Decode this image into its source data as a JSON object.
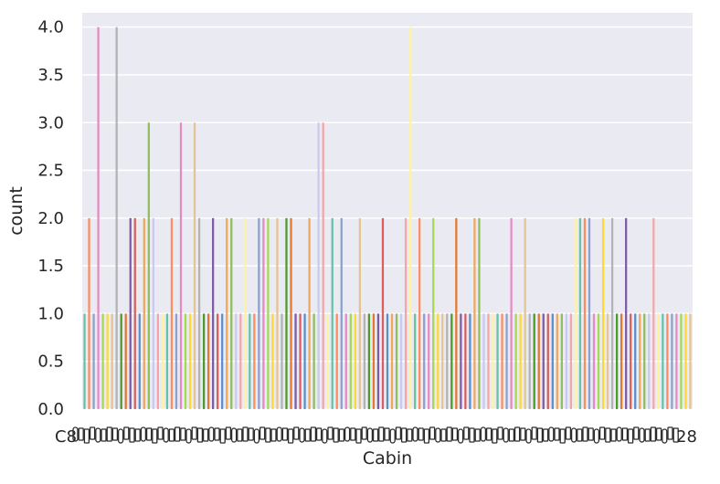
{
  "chart_data": {
    "type": "bar",
    "title": "",
    "xlabel": "Cabin",
    "ylabel": "count",
    "ylim": [
      0,
      4.15
    ],
    "yticks": [
      "0.0",
      "0.5",
      "1.0",
      "1.5",
      "2.0",
      "2.5",
      "3.0",
      "3.5",
      "4.0"
    ],
    "grid": true,
    "background": "#eaeaf2",
    "palette": [
      "#66c2a5",
      "#fc8d62",
      "#8da0cb",
      "#e78ac3",
      "#a6d854",
      "#ffd92f",
      "#e5c494",
      "#b3b3b3",
      "#4c9a2a",
      "#e6772e",
      "#7d5ba6",
      "#d95f5f",
      "#5b8fc9",
      "#f2a65a",
      "#8fbf5a",
      "#c9c9f2",
      "#f4a6a6",
      "#fff3a0"
    ],
    "first_category_label": "C8",
    "last_category_label": "28",
    "values": [
      1,
      2,
      1,
      4,
      1,
      1,
      1,
      4,
      1,
      1,
      2,
      2,
      1,
      2,
      3,
      2,
      1,
      1,
      1,
      2,
      1,
      3,
      1,
      1,
      3,
      2,
      1,
      1,
      2,
      1,
      1,
      2,
      2,
      1,
      1,
      2,
      1,
      1,
      2,
      2,
      2,
      1,
      2,
      1,
      2,
      2,
      1,
      1,
      1,
      2,
      1,
      3,
      3,
      1,
      2,
      1,
      2,
      1,
      1,
      1,
      2,
      1,
      1,
      1,
      1,
      2,
      1,
      1,
      1,
      1,
      2,
      4,
      1,
      2,
      1,
      1,
      2,
      1,
      1,
      1,
      1,
      2,
      1,
      1,
      1,
      2,
      2,
      1,
      1,
      1,
      1,
      1,
      1,
      2,
      1,
      1,
      2,
      1,
      1,
      1,
      1,
      1,
      1,
      1,
      1,
      1,
      1,
      2,
      2,
      2,
      2,
      1,
      1,
      2,
      1,
      2,
      1,
      1,
      2,
      1,
      1,
      1,
      1,
      1,
      2,
      1,
      1,
      1,
      1,
      1,
      1,
      1,
      1
    ]
  }
}
